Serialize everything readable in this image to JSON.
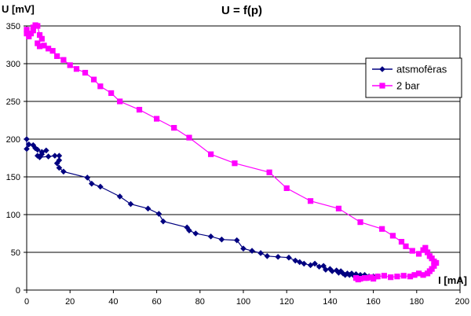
{
  "chart_data": {
    "type": "scatter",
    "title": "U = f(p)",
    "ylabel": "U [mV]",
    "xlabel": "I [mA]",
    "xlim": [
      0,
      200
    ],
    "ylim": [
      0,
      350
    ],
    "xticks": [
      0,
      20,
      40,
      60,
      80,
      100,
      120,
      140,
      160,
      180,
      200
    ],
    "yticks": [
      0,
      50,
      100,
      150,
      200,
      250,
      300,
      350
    ],
    "x_tick_labels": [
      "0",
      "20",
      "40",
      "60",
      "80",
      "100",
      "120",
      "140",
      "160",
      "180",
      "200"
    ],
    "y_tick_labels": [
      "0",
      "50",
      "100",
      "150",
      "200",
      "250",
      "300",
      "350"
    ],
    "grid": "horizontal",
    "legend_position": "right",
    "series": [
      {
        "name": "atsmofēras",
        "color": "#000080",
        "marker": "diamond",
        "points": [
          [
            0,
            200
          ],
          [
            0,
            187
          ],
          [
            1,
            193
          ],
          [
            3,
            192
          ],
          [
            4,
            188
          ],
          [
            5,
            186
          ],
          [
            7,
            183
          ],
          [
            9,
            185
          ],
          [
            7,
            180
          ],
          [
            5,
            178
          ],
          [
            6,
            176
          ],
          [
            10,
            177
          ],
          [
            13,
            178
          ],
          [
            15,
            178
          ],
          [
            15,
            172
          ],
          [
            14,
            168
          ],
          [
            15,
            162
          ],
          [
            17,
            157
          ],
          [
            28,
            149
          ],
          [
            30,
            141
          ],
          [
            34,
            137
          ],
          [
            43,
            124
          ],
          [
            48,
            114
          ],
          [
            56,
            108
          ],
          [
            61,
            101
          ],
          [
            63,
            91
          ],
          [
            74,
            83
          ],
          [
            75,
            79
          ],
          [
            78,
            75
          ],
          [
            85,
            71
          ],
          [
            90,
            67
          ],
          [
            97,
            66
          ],
          [
            100,
            55
          ],
          [
            104,
            52
          ],
          [
            108,
            49
          ],
          [
            111,
            45
          ],
          [
            116,
            44
          ],
          [
            121,
            43
          ],
          [
            124,
            39
          ],
          [
            126,
            37
          ],
          [
            128,
            35
          ],
          [
            131,
            33
          ],
          [
            133,
            35
          ],
          [
            135,
            31
          ],
          [
            137,
            32
          ],
          [
            138,
            27
          ],
          [
            140,
            28
          ],
          [
            141,
            25
          ],
          [
            143,
            26
          ],
          [
            144,
            23
          ],
          [
            145,
            25
          ],
          [
            146,
            22
          ],
          [
            147,
            20
          ],
          [
            148,
            22
          ],
          [
            149,
            20
          ],
          [
            150,
            22
          ],
          [
            151,
            19
          ],
          [
            152,
            21
          ],
          [
            153,
            18
          ],
          [
            154,
            20
          ],
          [
            155,
            17
          ],
          [
            156,
            20
          ],
          [
            157,
            16
          ],
          [
            158,
            18
          ],
          [
            159,
            16
          ],
          [
            160,
            18
          ],
          [
            161,
            17
          ],
          [
            162,
            18
          ]
        ]
      },
      {
        "name": "2 bar",
        "color": "#FF00FF",
        "marker": "square",
        "points": [
          [
            0,
            345
          ],
          [
            0,
            340
          ],
          [
            1,
            336
          ],
          [
            2,
            340
          ],
          [
            3,
            344
          ],
          [
            3,
            348
          ],
          [
            4,
            351
          ],
          [
            5,
            350
          ],
          [
            6,
            338
          ],
          [
            7,
            333
          ],
          [
            5,
            327
          ],
          [
            6,
            323
          ],
          [
            8,
            324
          ],
          [
            10,
            320
          ],
          [
            12,
            317
          ],
          [
            14,
            310
          ],
          [
            17,
            305
          ],
          [
            20,
            298
          ],
          [
            23,
            293
          ],
          [
            27,
            288
          ],
          [
            31,
            279
          ],
          [
            34,
            270
          ],
          [
            39,
            261
          ],
          [
            43,
            250
          ],
          [
            52,
            239
          ],
          [
            60,
            227
          ],
          [
            68,
            215
          ],
          [
            75,
            202
          ],
          [
            85,
            180
          ],
          [
            96,
            168
          ],
          [
            112,
            156
          ],
          [
            120,
            135
          ],
          [
            131,
            118
          ],
          [
            144,
            108
          ],
          [
            154,
            90
          ],
          [
            164,
            81
          ],
          [
            169,
            72
          ],
          [
            173,
            64
          ],
          [
            175,
            58
          ],
          [
            178,
            52
          ],
          [
            181,
            48
          ],
          [
            183,
            53
          ],
          [
            184,
            56
          ],
          [
            185,
            50
          ],
          [
            186,
            45
          ],
          [
            187,
            42
          ],
          [
            188,
            38
          ],
          [
            189,
            36
          ],
          [
            188,
            32
          ],
          [
            187,
            28
          ],
          [
            186,
            25
          ],
          [
            185,
            22
          ],
          [
            183,
            20
          ],
          [
            181,
            22
          ],
          [
            179,
            20
          ],
          [
            177,
            18
          ],
          [
            174,
            19
          ],
          [
            171,
            18
          ],
          [
            168,
            17
          ],
          [
            165,
            19
          ],
          [
            162,
            18
          ],
          [
            159,
            17
          ],
          [
            156,
            16
          ],
          [
            153,
            14
          ],
          [
            152,
            16
          ],
          [
            154,
            15
          ],
          [
            157,
            16
          ],
          [
            160,
            15
          ]
        ]
      }
    ]
  }
}
